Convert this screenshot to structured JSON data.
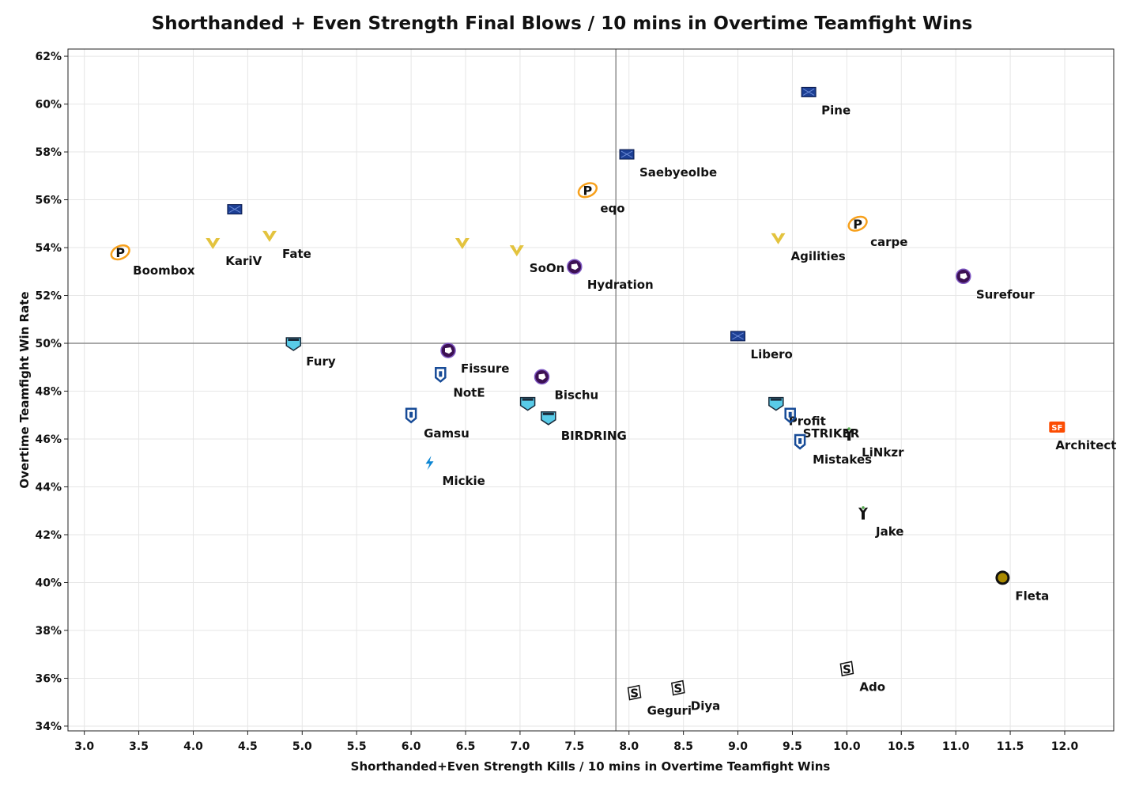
{
  "chart_data": {
    "type": "scatter",
    "title": "Shorthanded + Even Strength Final Blows / 10 mins in Overtime Teamfight Wins",
    "xlabel": "Shorthanded+Even Strength Kills / 10 mins in Overtime Teamfight Wins",
    "ylabel": "Overtime Teamfight Win Rate",
    "xlim": [
      2.85,
      12.45
    ],
    "ylim": [
      33.8,
      62.3
    ],
    "x_ticks": [
      "3.0",
      "3.5",
      "4.0",
      "4.5",
      "5.0",
      "5.5",
      "6.0",
      "6.5",
      "7.0",
      "7.5",
      "8.0",
      "8.5",
      "9.0",
      "9.5",
      "10.0",
      "10.5",
      "11.0",
      "11.5",
      "12.0"
    ],
    "y_ticks": [
      "34%",
      "36%",
      "38%",
      "40%",
      "42%",
      "44%",
      "46%",
      "48%",
      "50%",
      "52%",
      "54%",
      "56%",
      "58%",
      "60%",
      "62%"
    ],
    "reference_lines": {
      "x": 7.88,
      "y": 50.0
    },
    "grid": true,
    "team_colors": {
      "titans": "#1c3f94",
      "fusion": "#f7a01b",
      "valiant": "#e3c33e",
      "gladiators": "#3c1053",
      "uprising": "#174b97",
      "spitfire": "#59cbe8",
      "dragons": "#0b85d3",
      "shock": "#fc4c02",
      "excelsior": "#171c38",
      "outlaws": "#55a84f",
      "dynasty": "#aa8a00",
      "hunters": "#1a1a1a"
    },
    "points": [
      {
        "name": "Pine",
        "team": "titans",
        "x": 9.65,
        "y": 60.5
      },
      {
        "name": "Saebyeolbe",
        "team": "titans",
        "x": 7.98,
        "y": 57.9
      },
      {
        "name": "eqo",
        "team": "fusion",
        "x": 7.62,
        "y": 56.4
      },
      {
        "name": "KariV",
        "team": "valiant",
        "x": 4.18,
        "y": 54.2
      },
      {
        "name": "",
        "team": "titans",
        "x": 4.38,
        "y": 55.6
      },
      {
        "name": "Fate",
        "team": "valiant",
        "x": 4.7,
        "y": 54.5
      },
      {
        "name": "Boombox",
        "team": "fusion",
        "x": 3.33,
        "y": 53.8
      },
      {
        "name": "",
        "team": "valiant",
        "x": 6.47,
        "y": 54.2
      },
      {
        "name": "SoOn",
        "team": "valiant",
        "x": 6.97,
        "y": 53.9
      },
      {
        "name": "Hydration",
        "team": "gladiators",
        "x": 7.5,
        "y": 53.2
      },
      {
        "name": "Agilities",
        "team": "valiant",
        "x": 9.37,
        "y": 54.4
      },
      {
        "name": "carpe",
        "team": "fusion",
        "x": 10.1,
        "y": 55.0
      },
      {
        "name": "Surefour",
        "team": "gladiators",
        "x": 11.07,
        "y": 52.8
      },
      {
        "name": "Libero",
        "team": "titans",
        "x": 9.0,
        "y": 50.3
      },
      {
        "name": "Fury",
        "team": "spitfire",
        "x": 4.92,
        "y": 50.0
      },
      {
        "name": "Fissure",
        "team": "gladiators",
        "x": 6.34,
        "y": 49.7
      },
      {
        "name": "NotE",
        "team": "uprising",
        "x": 6.27,
        "y": 48.7
      },
      {
        "name": "Bischu",
        "team": "gladiators",
        "x": 7.2,
        "y": 48.6
      },
      {
        "name": "",
        "team": "spitfire",
        "x": 7.07,
        "y": 47.5
      },
      {
        "name": "BIRDRING",
        "team": "spitfire",
        "x": 7.26,
        "y": 46.9
      },
      {
        "name": "Gamsu",
        "team": "uprising",
        "x": 6.0,
        "y": 47.0
      },
      {
        "name": "Mickie",
        "team": "dragons",
        "x": 6.17,
        "y": 45.0
      },
      {
        "name": "Profit",
        "team": "spitfire",
        "x": 9.35,
        "y": 47.5
      },
      {
        "name": "STRIKER",
        "team": "uprising",
        "x": 9.48,
        "y": 47.0
      },
      {
        "name": "LiNkzr",
        "team": "outlaws",
        "x": 10.02,
        "y": 46.2
      },
      {
        "name": "Mistakes",
        "team": "uprising",
        "x": 9.57,
        "y": 45.9
      },
      {
        "name": "Architect",
        "team": "shock",
        "x": 11.93,
        "y": 46.5
      },
      {
        "name": "Jake",
        "team": "outlaws",
        "x": 10.15,
        "y": 42.9
      },
      {
        "name": "Fleta",
        "team": "dynasty",
        "x": 11.43,
        "y": 40.2
      },
      {
        "name": "Ado",
        "team": "hunters",
        "x": 10.0,
        "y": 36.4
      },
      {
        "name": "Geguri",
        "team": "hunters",
        "x": 8.05,
        "y": 35.4
      },
      {
        "name": "Diya",
        "team": "hunters",
        "x": 8.45,
        "y": 35.6
      }
    ]
  }
}
